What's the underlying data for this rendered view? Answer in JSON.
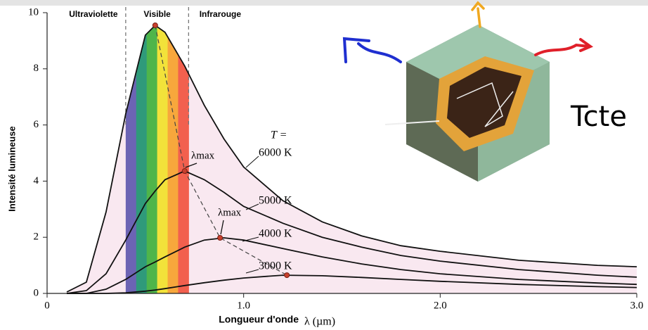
{
  "chart_data": {
    "type": "line",
    "ylabel": "Intensité lumineuse",
    "xlabel": "Longueur d'onde",
    "xunit": "λ (µm)",
    "xlim": [
      0,
      3.0
    ],
    "ylim": [
      0,
      10
    ],
    "xticks": [
      0,
      {
        "value": 1,
        "label": "1.0"
      },
      {
        "value": 2,
        "label": "2.0"
      },
      {
        "value": 3,
        "label": "3.0"
      }
    ],
    "yticks": [
      0,
      2,
      4,
      6,
      8,
      10
    ],
    "regions": [
      "Ultraviolette",
      "Visible",
      "Infrarouge"
    ],
    "region_bounds": [
      0.4,
      0.72
    ],
    "spectrum_colors": [
      "#6c64b4",
      "#2f9a7a",
      "#4fb54a",
      "#f2e23a",
      "#f7a73c",
      "#f2604e"
    ],
    "series_title": "T =",
    "x": [
      0.1,
      0.2,
      0.3,
      0.4,
      0.5,
      0.55,
      0.6,
      0.7,
      0.8,
      0.9,
      1.0,
      1.2,
      1.4,
      1.6,
      1.8,
      2.0,
      2.4,
      2.8,
      3.0
    ],
    "series": [
      {
        "name": "6000 K",
        "color": "#111111",
        "values": [
          0.05,
          0.4,
          2.9,
          6.4,
          9.2,
          9.55,
          9.3,
          8.1,
          6.7,
          5.5,
          4.5,
          3.3,
          2.55,
          2.05,
          1.7,
          1.5,
          1.18,
          1.0,
          0.95
        ]
      },
      {
        "name": "5000 K",
        "color": "#111111",
        "values": [
          0,
          0.1,
          0.7,
          1.9,
          3.2,
          3.65,
          4.05,
          4.36,
          4.05,
          3.6,
          3.1,
          2.5,
          2.0,
          1.65,
          1.35,
          1.15,
          0.85,
          0.65,
          0.58
        ]
      },
      {
        "name": "4000 K",
        "color": "#111111",
        "values": [
          0,
          0,
          0.15,
          0.5,
          0.95,
          1.12,
          1.3,
          1.65,
          1.9,
          1.98,
          1.9,
          1.6,
          1.3,
          1.05,
          0.85,
          0.7,
          0.5,
          0.37,
          0.32
        ]
      },
      {
        "name": "3000 K",
        "color": "#111111",
        "values": [
          0,
          0,
          0,
          0.02,
          0.08,
          0.12,
          0.17,
          0.28,
          0.38,
          0.47,
          0.55,
          0.65,
          0.63,
          0.57,
          0.5,
          0.43,
          0.32,
          0.24,
          0.21
        ]
      }
    ],
    "peaks": {
      "x": [
        0.55,
        0.7,
        0.88,
        1.22
      ],
      "values": [
        9.55,
        4.36,
        1.98,
        0.65
      ],
      "color": "#c8402e"
    },
    "peak_labels": [
      "λmax",
      "λmax"
    ],
    "annotation": "Tcte"
  }
}
